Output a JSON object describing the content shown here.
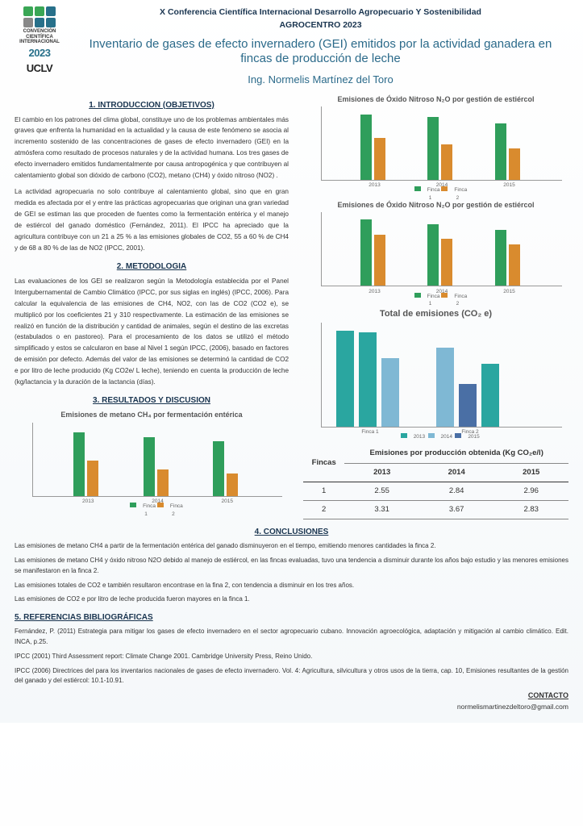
{
  "conference": {
    "line1": "X Conferencia Científica Internacional Desarrollo Agropecuario Y Sostenibilidad",
    "line2": "AGROCENTRO 2023"
  },
  "logo": {
    "colors": [
      "#3aa655",
      "#3aa655",
      "#27708a",
      "#888",
      "#27708a",
      "#27708a"
    ],
    "text1": "CONVENCIÓN",
    "text2": "CIENTÍFICA",
    "text3": "INTERNACIONAL",
    "year": "2023",
    "uclv": "UCLV"
  },
  "title": "Inventario de gases de efecto invernadero (GEI) emitidos por la actividad ganadera en fincas de producción de leche",
  "author": "Ing. Normelis Martínez del Toro",
  "sections": {
    "intro_head": "1. INTRODUCCION (OBJETIVOS)",
    "intro_p1": "El cambio en los patrones del clima global, constituye uno de los problemas ambientales más graves que enfrenta la humanidad en la actualidad y la causa de este fenómeno se asocia al incremento sostenido de las concentraciones de gases de efecto invernadero (GEI) en la atmósfera como resultado de procesos naturales y de la actividad humana. Los tres gases de efecto invernadero emitidos fundamentalmente por causa antropogénica y que contribuyen al calentamiento global son dióxido de carbono (CO2), metano (CH4) y óxido nitroso (NO2) .",
    "intro_p2": "La actividad agropecuaria no solo contribuye al calentamiento global, sino que en gran medida es afectada por el y entre las prácticas agropecuarias que originan una gran variedad de GEI se estiman las que proceden de fuentes como la fermentación entérica y el manejo de estiércol del ganado doméstico (Fernández, 2011). El IPCC ha apreciado que la agricultura contribuye con un 21 a 25 % a las emisiones globales de CO2, 55 a 60 % de CH4 y de 68 a 80 % de las de NO2 (IPCC, 2001).",
    "metod_head": "2. METODOLOGIA",
    "metod_p1": "Las evaluaciones de los GEI se realizaron según la Metodología establecida por el Panel Intergubernamental de Cambio Climático (IPCC, por sus siglas en inglés) (IPCC, 2006). Para calcular la equivalencia de las emisiones de CH4, NO2, con las de CO2 (CO2 e), se multiplicó por los coeficientes 21 y 310 respectivamente. La estimación de las emisiones se realizó en función de la distribución y cantidad de animales, según el destino de las excretas (estabulados o en pastoreo). Para el procesamiento de los datos se utilizó el método simplificado y estos se calcularon en base al Nivel 1 según IPCC, (2006), basado en factores de emisión por defecto. Además del valor de las emisiones se determinó la cantidad de CO2 e por litro de leche producido (Kg CO2e/ L leche), teniendo en cuenta la producción de leche (kg/lactancia y la duración de la lactancia (días).",
    "result_head": "3. RESULTADOS Y DISCUSION",
    "concl_head": "4. CONCLUSIONES",
    "concl_p1": "Las emisiones de metano CH4 a partir de la fermentación entérica del ganado disminuyeron en el tiempo, emitiendo menores cantidades la finca 2.",
    "concl_p2": "Las emisiones de metano CH4 y óxido nitroso N2O debido al manejo de estiércol, en las fincas evaluadas, tuvo una tendencia a disminuir durante los años bajo estudio y las menores emisiones se manifestaron en la finca 2.",
    "concl_p3": "Las emisiones totales de CO2 e también resultaron encontrase en la fina 2, con tendencia a disminuir en los tres años.",
    "concl_p4": "Las emisiones de CO2 e por litro de leche producida fueron mayores en la finca 1.",
    "refs_head": "5. REFERENCIAS BIBLIOGRÁFICAS",
    "ref1": "Fernández, P. (2011) Estrategia para mitigar los gases de efecto invernadero en el sector agropecuario cubano. Innovación agroecológica, adaptación y mitigación al cambio climático. Edit. INCA, p.25.",
    "ref2": "IPCC (2001) Third Assessment report: Climate Change 2001. Cambridge University Press, Reino Unido.",
    "ref3": "IPCC (2006) Directrices del para los inventarios nacionales de gases de efecto invernadero. Vol. 4: Agricultura, silvicultura y otros usos de la tierra, cap. 10, Emisiones resultantes de la gestión del ganado y del estiércol: 10.1-10.91."
  },
  "charts": {
    "years": [
      "2013",
      "2014",
      "2015"
    ],
    "series_labels": [
      "Finca 1",
      "Finca 2"
    ],
    "colors": {
      "finca1": "#2f9e5b",
      "finca2": "#d98b2e",
      "teal": "#2aa6a0",
      "lblue": "#7fb8d4",
      "dblue": "#4a6fa5"
    },
    "n2o_a": {
      "title": "Emisiones de Óxido Nitroso N₂O por gestión de estiércol",
      "values": [
        [
          0.00031,
          0.0002
        ],
        [
          0.0003,
          0.00017
        ],
        [
          0.00027,
          0.00015
        ]
      ],
      "ymax": 0.00035
    },
    "n2o_b": {
      "title": "Emisiones de Óxido Nitroso N₂O por gestión de estiércol",
      "values": [
        [
          4.5e-05,
          3.5e-05
        ],
        [
          4.2e-05,
          3.2e-05
        ],
        [
          3.8e-05,
          2.8e-05
        ]
      ],
      "ymax": 5e-05
    },
    "total": {
      "title": "Total de emisiones (CO₂ e)",
      "categories": [
        "Finca 1",
        "Finca 2"
      ],
      "sub": [
        "2013",
        "2014",
        "2015"
      ],
      "values": [
        [
          2.95,
          2.88,
          2.1
        ],
        [
          2.41,
          1.3,
          1.92
        ]
      ],
      "colors": [
        "#2aa6a0",
        "#2aa6a0",
        "#7fb8d4",
        "#7fb8d4",
        "#4a6fa5",
        "#2aa6a0"
      ],
      "ymax": 3.2
    },
    "ch4": {
      "title": "Emisiones de metano CH₄ por fermentación entérica",
      "values": [
        [
          4.3e-05,
          2.4e-05
        ],
        [
          4e-05,
          1.8e-05
        ],
        [
          3.7e-05,
          1.5e-05
        ]
      ],
      "ymax": 5e-05
    }
  },
  "table": {
    "head_fincas": "Fincas",
    "head_main": "Emisiones por producción obtenida (Kg CO₂e/l)",
    "years": [
      "2013",
      "2014",
      "2015"
    ],
    "rows": [
      {
        "f": "1",
        "v": [
          "2.55",
          "2.84",
          "2.96"
        ]
      },
      {
        "f": "2",
        "v": [
          "3.31",
          "3.67",
          "2.83"
        ]
      }
    ]
  },
  "contact": {
    "label": "CONTACTO",
    "email": "normelismartinezdeltoro@gmail.com"
  }
}
